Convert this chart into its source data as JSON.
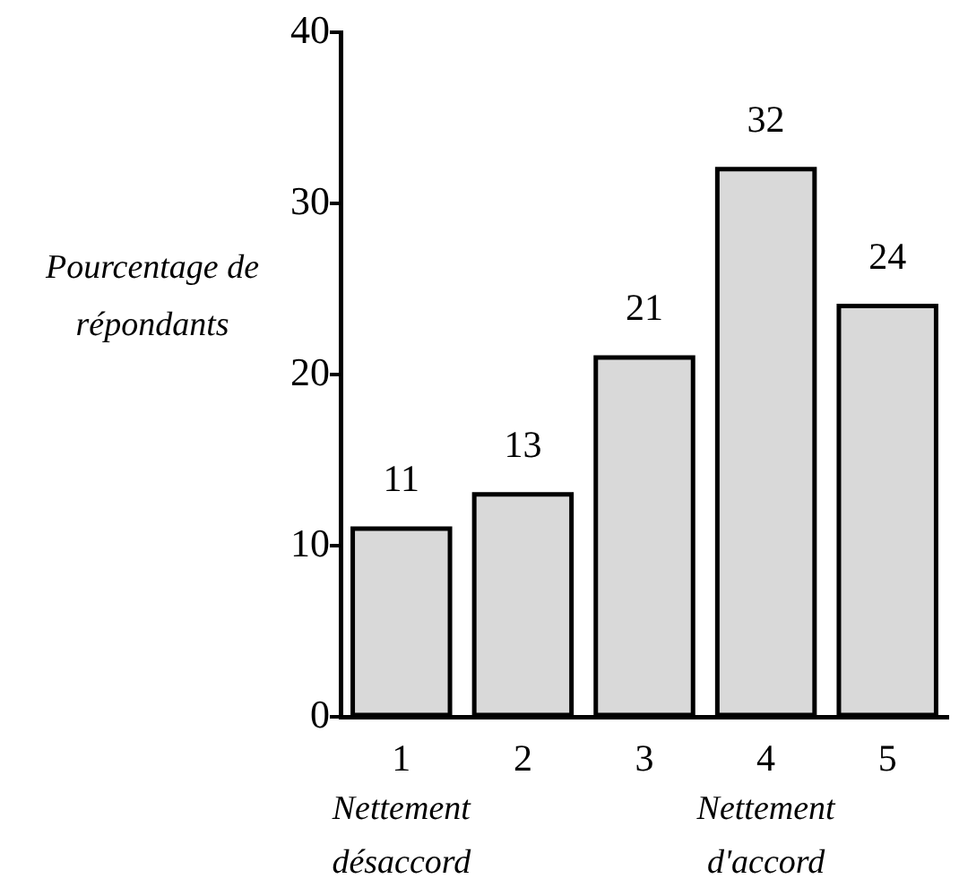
{
  "chart_data": {
    "type": "bar",
    "categories": [
      "1",
      "2",
      "3",
      "4",
      "5"
    ],
    "values": [
      11,
      13,
      21,
      32,
      24
    ],
    "color": "#d9d9d9",
    "ylim": [
      0,
      40
    ],
    "yticks": [
      0,
      10,
      20,
      30,
      40
    ],
    "ylabel": "Pourcentage de répondants",
    "grid": false,
    "legend": false,
    "data_labels": true,
    "annotations": [
      "Nettement désaccord",
      "Nettement d'accord"
    ]
  }
}
